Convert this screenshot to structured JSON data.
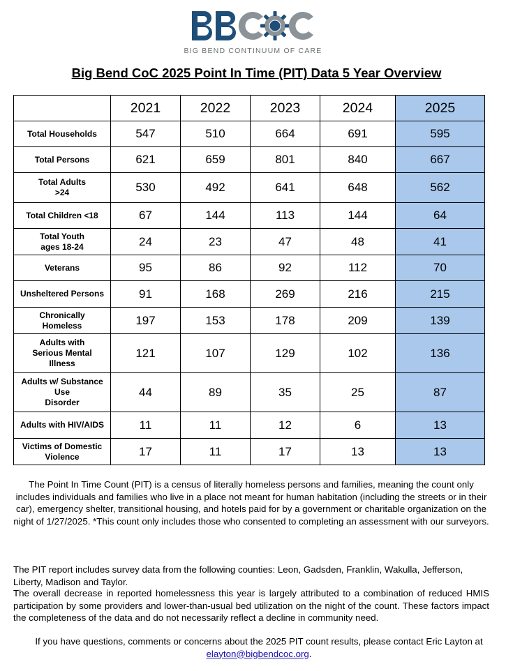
{
  "logo": {
    "subtitle": "BIG BEND CONTINUUM OF CARE",
    "colors": {
      "navy": "#1f4e79",
      "gray": "#8c9398"
    }
  },
  "title": "Big Bend CoC 2025 Point In Time (PIT) Data 5 Year Overview",
  "table": {
    "years": [
      "2021",
      "2022",
      "2023",
      "2024",
      "2025"
    ],
    "highlight_year": "2025",
    "highlight_color": "#a9c8ec",
    "rows": [
      {
        "label": "Total Households",
        "values": [
          "547",
          "510",
          "664",
          "691",
          "595"
        ]
      },
      {
        "label": "Total Persons",
        "values": [
          "621",
          "659",
          "801",
          "840",
          "667"
        ]
      },
      {
        "label": "Total Adults\n>24",
        "values": [
          "530",
          "492",
          "641",
          "648",
          "562"
        ]
      },
      {
        "label": "Total Children <18",
        "values": [
          "67",
          "144",
          "113",
          "144",
          "64"
        ]
      },
      {
        "label": "Total Youth\nages 18-24",
        "values": [
          "24",
          "23",
          "47",
          "48",
          "41"
        ]
      },
      {
        "label": "Veterans",
        "values": [
          "95",
          "86",
          "92",
          "112",
          "70"
        ]
      },
      {
        "label": "Unsheltered Persons",
        "values": [
          "91",
          "168",
          "269",
          "216",
          "215"
        ]
      },
      {
        "label": "Chronically\nHomeless",
        "values": [
          "197",
          "153",
          "178",
          "209",
          "139"
        ]
      },
      {
        "label": "Adults with\nSerious Mental\nIllness",
        "values": [
          "121",
          "107",
          "129",
          "102",
          "136"
        ]
      },
      {
        "label": "Adults w/ Substance\nUse\nDisorder",
        "values": [
          "44",
          "89",
          "35",
          "25",
          "87"
        ]
      },
      {
        "label": "Adults with HIV/AIDS",
        "values": [
          "11",
          "11",
          "12",
          "6",
          "13"
        ]
      },
      {
        "label": "Victims of Domestic\nViolence",
        "values": [
          "17",
          "11",
          "17",
          "13",
          "13"
        ]
      }
    ]
  },
  "paragraphs": {
    "definition": "The Point In Time Count (PIT) is a census of literally homeless persons and families, meaning the count only includes individuals and families who live in a place not meant for human habitation (including the streets or in their car), emergency shelter, transitional housing, and hotels paid for by a government or charitable organization on the night of 1/27/2025. *This count only includes those who consented to completing an assessment with our surveyors.",
    "counties": "The PIT report includes survey data from the following counties: Leon, Gadsden, Franklin, Wakulla, Jefferson, Liberty, Madison and Taylor.",
    "decrease": "The overall decrease in reported homelessness this year is largely attributed to a combination of reduced HMIS participation by some providers and lower-than-usual bed utilization on the night of the count. These factors impact the completeness of the data and do not necessarily reflect a decline in community need.",
    "contact_prefix": "If you have questions, comments or concerns about the 2025 PIT count results, please contact Eric Layton at ",
    "contact_email": "elayton@bigbendcoc.org",
    "contact_suffix": "."
  }
}
